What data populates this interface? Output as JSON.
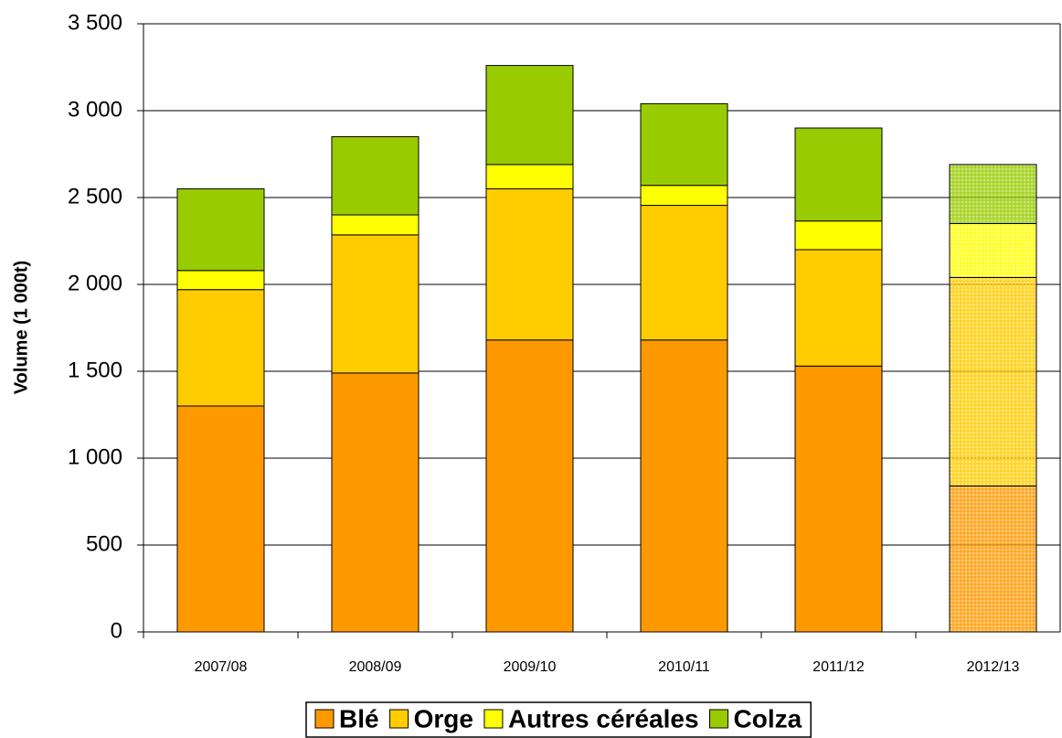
{
  "chart_data": {
    "type": "stacked_bar",
    "y_label": "Volume (1 000t)",
    "categories": [
      "2007/08",
      "2008/09",
      "2009/10",
      "2010/11",
      "2011/12",
      "2012/13"
    ],
    "projected": [
      false,
      false,
      false,
      false,
      false,
      true
    ],
    "series": [
      {
        "name": "Blé",
        "color": "#ff9900",
        "values": [
          1300,
          1490,
          1680,
          1680,
          1530,
          840
        ]
      },
      {
        "name": "Orge",
        "color": "#ffcc00",
        "values": [
          670,
          795,
          870,
          775,
          670,
          1200
        ]
      },
      {
        "name": "Autres céréales",
        "color": "#ffff00",
        "values": [
          110,
          115,
          140,
          115,
          165,
          310
        ]
      },
      {
        "name": "Colza",
        "color": "#99cc00",
        "values": [
          470,
          450,
          570,
          470,
          535,
          340
        ]
      }
    ],
    "ylim": [
      0,
      3500
    ],
    "yticks": [
      0,
      500,
      {
        "value": 1000,
        "label": "1 000"
      },
      {
        "value": 1500,
        "label": "1 500"
      },
      {
        "value": 2000,
        "label": "2 000"
      },
      {
        "value": 2500,
        "label": "2 500"
      },
      {
        "value": 3000,
        "label": "3 000"
      },
      {
        "value": 3500,
        "label": "3 500"
      }
    ],
    "grid": true
  }
}
